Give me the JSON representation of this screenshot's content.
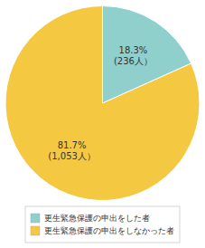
{
  "chart_data": {
    "type": "pie",
    "categories": [
      "更生緊急保護の申出をした者",
      "更生緊急保護の申出をしなかった者"
    ],
    "values": [
      18.3,
      81.7
    ],
    "value_labels": [
      "18.3%\n(236人）",
      "81.7%\n(1,053人）"
    ],
    "colors": [
      "#8fcfcc",
      "#f5c842"
    ],
    "data_labels": true,
    "legend": "bottom"
  }
}
